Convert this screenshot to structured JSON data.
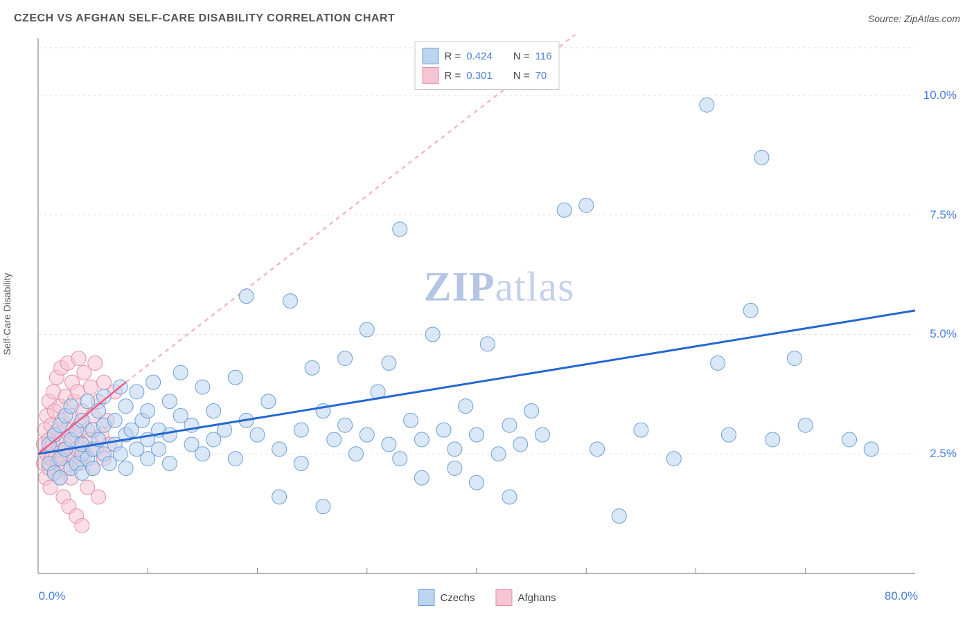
{
  "header": {
    "title": "CZECH VS AFGHAN SELF-CARE DISABILITY CORRELATION CHART",
    "source": "Source: ZipAtlas.com"
  },
  "yaxis_label": "Self-Care Disability",
  "watermark_bold": "ZIP",
  "watermark_plain": "atlas",
  "chart": {
    "type": "scatter-with-regression",
    "plot_bg": "#ffffff",
    "grid_color": "#e3e3e3",
    "axis_line_color": "#888888",
    "tick_color": "#888888",
    "xlim": [
      0,
      80
    ],
    "ylim": [
      0,
      11.2
    ],
    "xtick_labels": [
      {
        "v": 0,
        "label": "0.0%"
      },
      {
        "v": 80,
        "label": "80.0%"
      }
    ],
    "xtick_minor": [
      10,
      20,
      30,
      40,
      50,
      60,
      70
    ],
    "ytick_labels": [
      {
        "v": 2.5,
        "label": "2.5%"
      },
      {
        "v": 5.0,
        "label": "5.0%"
      },
      {
        "v": 7.5,
        "label": "7.5%"
      },
      {
        "v": 10.0,
        "label": "10.0%"
      }
    ],
    "ygrid_top": 11.0,
    "marker_radius": 10.5,
    "marker_stroke_width": 1.0,
    "series": {
      "czechs": {
        "label": "Czechs",
        "fill": "#bcd4f0",
        "fill_opacity": 0.55,
        "stroke": "#6a9fd8",
        "reg_line_color": "#2367d1",
        "reg_line_width": 3,
        "reg_line_dash": "none",
        "reg_from": {
          "x": 0,
          "y": 2.5
        },
        "reg_to": {
          "x": 80,
          "y": 5.5
        },
        "R": "0.424",
        "N": "116",
        "points": [
          [
            1,
            2.3
          ],
          [
            1,
            2.7
          ],
          [
            1.5,
            2.1
          ],
          [
            1.5,
            2.9
          ],
          [
            2,
            2.4
          ],
          [
            2,
            3.1
          ],
          [
            2,
            2.0
          ],
          [
            2.5,
            2.6
          ],
          [
            2.5,
            3.3
          ],
          [
            3,
            2.2
          ],
          [
            3,
            2.8
          ],
          [
            3,
            3.5
          ],
          [
            3.5,
            2.3
          ],
          [
            3.5,
            3.0
          ],
          [
            4,
            2.5
          ],
          [
            4,
            2.1
          ],
          [
            4,
            3.2
          ],
          [
            4,
            2.7
          ],
          [
            4.5,
            3.6
          ],
          [
            4.5,
            2.4
          ],
          [
            5,
            2.6
          ],
          [
            5,
            3.0
          ],
          [
            5,
            2.2
          ],
          [
            5.5,
            3.4
          ],
          [
            5.5,
            2.8
          ],
          [
            6,
            2.5
          ],
          [
            6,
            3.1
          ],
          [
            6,
            3.7
          ],
          [
            6.5,
            2.3
          ],
          [
            7,
            2.7
          ],
          [
            7,
            3.2
          ],
          [
            7.5,
            3.9
          ],
          [
            7.5,
            2.5
          ],
          [
            8,
            2.9
          ],
          [
            8,
            3.5
          ],
          [
            8,
            2.2
          ],
          [
            8.5,
            3.0
          ],
          [
            9,
            2.6
          ],
          [
            9,
            3.8
          ],
          [
            9.5,
            3.2
          ],
          [
            10,
            2.8
          ],
          [
            10,
            3.4
          ],
          [
            10,
            2.4
          ],
          [
            10.5,
            4.0
          ],
          [
            11,
            3.0
          ],
          [
            11,
            2.6
          ],
          [
            12,
            3.6
          ],
          [
            12,
            2.9
          ],
          [
            12,
            2.3
          ],
          [
            13,
            3.3
          ],
          [
            13,
            4.2
          ],
          [
            14,
            2.7
          ],
          [
            14,
            3.1
          ],
          [
            15,
            3.9
          ],
          [
            15,
            2.5
          ],
          [
            16,
            3.4
          ],
          [
            16,
            2.8
          ],
          [
            17,
            3.0
          ],
          [
            18,
            2.4
          ],
          [
            18,
            4.1
          ],
          [
            19,
            5.8
          ],
          [
            19,
            3.2
          ],
          [
            20,
            2.9
          ],
          [
            21,
            3.6
          ],
          [
            22,
            2.6
          ],
          [
            22,
            1.6
          ],
          [
            23,
            5.7
          ],
          [
            24,
            3.0
          ],
          [
            24,
            2.3
          ],
          [
            25,
            4.3
          ],
          [
            26,
            3.4
          ],
          [
            26,
            1.4
          ],
          [
            27,
            2.8
          ],
          [
            28,
            4.5
          ],
          [
            28,
            3.1
          ],
          [
            29,
            2.5
          ],
          [
            30,
            2.9
          ],
          [
            30,
            5.1
          ],
          [
            31,
            3.8
          ],
          [
            32,
            2.7
          ],
          [
            32,
            4.4
          ],
          [
            33,
            2.4
          ],
          [
            33,
            7.2
          ],
          [
            34,
            3.2
          ],
          [
            35,
            2.8
          ],
          [
            35,
            2.0
          ],
          [
            36,
            5.0
          ],
          [
            37,
            3.0
          ],
          [
            38,
            2.6
          ],
          [
            38,
            2.2
          ],
          [
            39,
            3.5
          ],
          [
            40,
            2.9
          ],
          [
            40,
            1.9
          ],
          [
            41,
            4.8
          ],
          [
            42,
            2.5
          ],
          [
            43,
            3.1
          ],
          [
            43,
            1.6
          ],
          [
            44,
            2.7
          ],
          [
            45,
            3.4
          ],
          [
            46,
            2.9
          ],
          [
            48,
            7.6
          ],
          [
            50,
            7.7
          ],
          [
            51,
            2.6
          ],
          [
            53,
            1.2
          ],
          [
            55,
            3.0
          ],
          [
            58,
            2.4
          ],
          [
            61,
            9.8
          ],
          [
            62,
            4.4
          ],
          [
            63,
            2.9
          ],
          [
            65,
            5.5
          ],
          [
            66,
            8.7
          ],
          [
            67,
            2.8
          ],
          [
            69,
            4.5
          ],
          [
            70,
            3.1
          ],
          [
            74,
            2.8
          ],
          [
            76,
            2.6
          ]
        ]
      },
      "afghans": {
        "label": "Afghans",
        "fill": "#f6c5d1",
        "fill_opacity": 0.55,
        "stroke": "#e78fa7",
        "reg_line_solid_color": "#ef5b85",
        "reg_line_dash_color": "#f4b6c6",
        "reg_line_width": 2.5,
        "reg_solid_from": {
          "x": 0,
          "y": 2.5
        },
        "reg_solid_to": {
          "x": 8,
          "y": 4.0
        },
        "reg_dash_from": {
          "x": 8,
          "y": 4.0
        },
        "reg_dash_to": {
          "x": 70,
          "y": 15.0
        },
        "R": "0.301",
        "N": "70",
        "points": [
          [
            0.5,
            2.3
          ],
          [
            0.5,
            2.7
          ],
          [
            0.6,
            3.0
          ],
          [
            0.7,
            2.0
          ],
          [
            0.8,
            2.5
          ],
          [
            0.8,
            3.3
          ],
          [
            1.0,
            2.8
          ],
          [
            1.0,
            2.2
          ],
          [
            1.0,
            3.6
          ],
          [
            1.1,
            1.8
          ],
          [
            1.2,
            2.4
          ],
          [
            1.2,
            3.1
          ],
          [
            1.3,
            2.7
          ],
          [
            1.4,
            3.8
          ],
          [
            1.5,
            2.1
          ],
          [
            1.5,
            2.9
          ],
          [
            1.5,
            3.4
          ],
          [
            1.6,
            2.5
          ],
          [
            1.7,
            4.1
          ],
          [
            1.8,
            2.3
          ],
          [
            1.8,
            3.0
          ],
          [
            1.9,
            2.7
          ],
          [
            2.0,
            3.5
          ],
          [
            2.0,
            2.0
          ],
          [
            2.0,
            2.8
          ],
          [
            2.1,
            4.3
          ],
          [
            2.2,
            2.4
          ],
          [
            2.2,
            3.2
          ],
          [
            2.3,
            1.6
          ],
          [
            2.4,
            2.6
          ],
          [
            2.5,
            3.7
          ],
          [
            2.5,
            2.2
          ],
          [
            2.6,
            3.0
          ],
          [
            2.7,
            4.4
          ],
          [
            2.8,
            2.5
          ],
          [
            2.8,
            1.4
          ],
          [
            3.0,
            3.3
          ],
          [
            3.0,
            2.8
          ],
          [
            3.0,
            2.0
          ],
          [
            3.1,
            4.0
          ],
          [
            3.2,
            2.4
          ],
          [
            3.3,
            3.6
          ],
          [
            3.4,
            2.9
          ],
          [
            3.5,
            1.2
          ],
          [
            3.5,
            2.6
          ],
          [
            3.6,
            3.8
          ],
          [
            3.7,
            4.5
          ],
          [
            3.8,
            2.3
          ],
          [
            3.8,
            3.1
          ],
          [
            4.0,
            2.7
          ],
          [
            4.0,
            1.0
          ],
          [
            4.0,
            3.4
          ],
          [
            4.2,
            4.2
          ],
          [
            4.3,
            2.5
          ],
          [
            4.5,
            3.0
          ],
          [
            4.5,
            1.8
          ],
          [
            4.7,
            2.8
          ],
          [
            4.8,
            3.9
          ],
          [
            5.0,
            2.2
          ],
          [
            5.0,
            3.3
          ],
          [
            5.2,
            4.4
          ],
          [
            5.3,
            2.6
          ],
          [
            5.5,
            3.6
          ],
          [
            5.5,
            1.6
          ],
          [
            5.8,
            2.9
          ],
          [
            6.0,
            2.4
          ],
          [
            6.0,
            4.0
          ],
          [
            6.3,
            3.2
          ],
          [
            6.5,
            2.7
          ],
          [
            7.0,
            3.8
          ]
        ]
      }
    }
  },
  "legend_top": {
    "rows": [
      {
        "swatch_series": "czechs",
        "R_lbl": "R =",
        "R_val": "0.424",
        "N_lbl": "N =",
        "N_val": "116"
      },
      {
        "swatch_series": "afghans",
        "R_lbl": "R =",
        "R_val": "0.301",
        "N_lbl": "N =",
        "N_val": "70"
      }
    ]
  },
  "legend_bottom": {
    "items": [
      {
        "series": "czechs",
        "label": "Czechs"
      },
      {
        "series": "afghans",
        "label": "Afghans"
      }
    ]
  }
}
